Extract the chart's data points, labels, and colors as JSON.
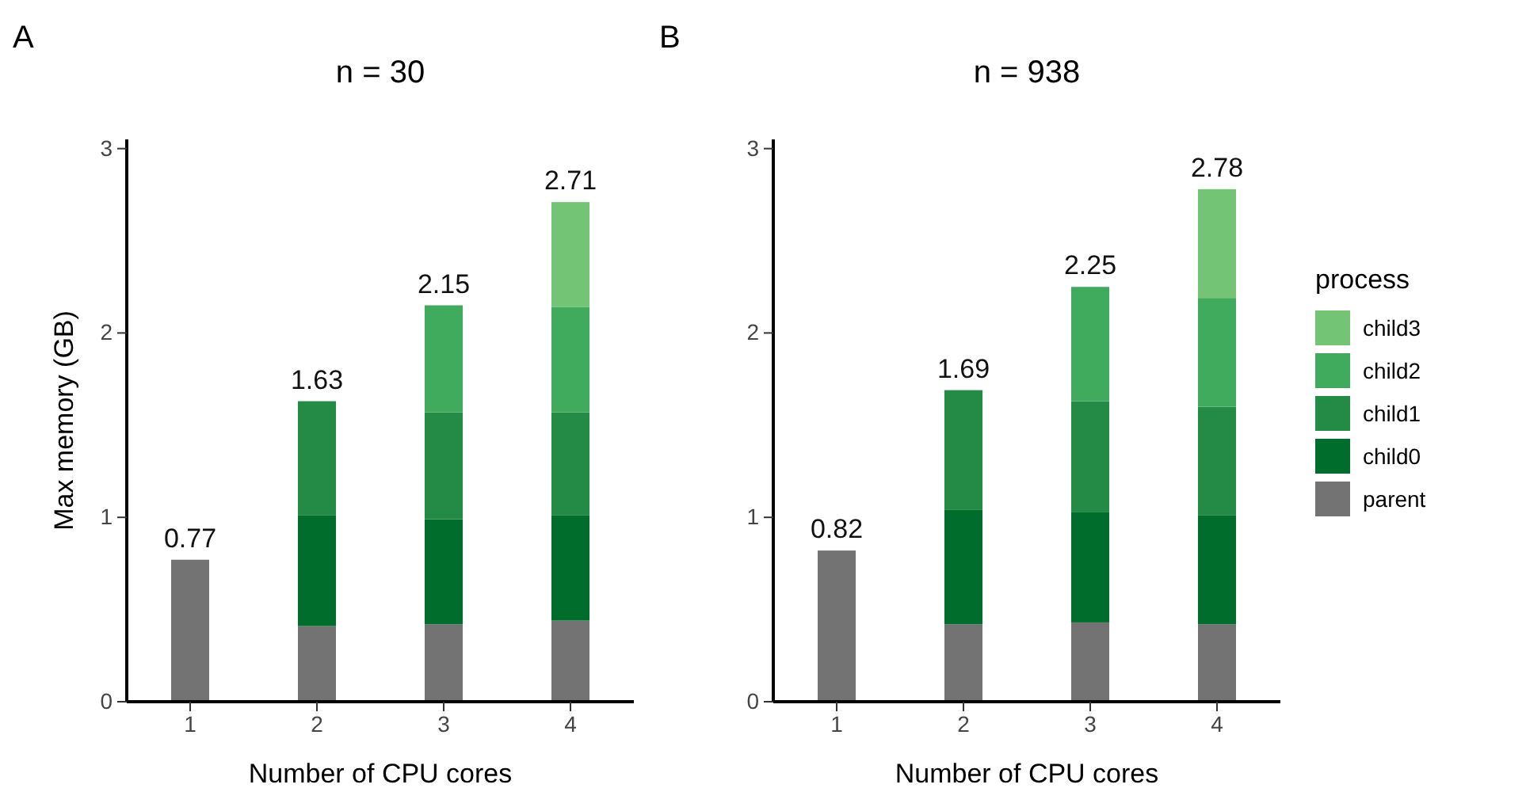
{
  "chart_data": [
    {
      "type": "bar",
      "stacked": true,
      "title": "n = 30",
      "xlabel": "Number of CPU cores",
      "ylabel": "Max memory (GB)",
      "annotations": [
        "A"
      ],
      "categories": [
        "1",
        "2",
        "3",
        "4"
      ],
      "ylim": [
        0,
        3.05
      ],
      "yticks": [
        0,
        1,
        2,
        3
      ],
      "grid": false,
      "legend": false,
      "totals": [
        "0.77",
        "1.63",
        "2.15",
        "2.71"
      ],
      "series": [
        {
          "color": "#737373",
          "values": [
            0.77,
            0.41,
            0.42,
            0.44
          ]
        },
        {
          "color": "#006d2c",
          "values": [
            null,
            0.6,
            0.57,
            0.57
          ]
        },
        {
          "color": "#238b45",
          "values": [
            null,
            0.62,
            0.58,
            0.56
          ]
        },
        {
          "color": "#41ab5d",
          "values": [
            null,
            null,
            0.58,
            0.57
          ]
        },
        {
          "color": "#74c476",
          "values": [
            null,
            null,
            null,
            0.57
          ]
        }
      ]
    },
    {
      "type": "bar",
      "stacked": true,
      "title": "n = 938",
      "xlabel": "Number of CPU cores",
      "annotations": [
        "B"
      ],
      "categories": [
        "1",
        "2",
        "3",
        "4"
      ],
      "ylim": [
        0,
        3.05
      ],
      "yticks": [
        0,
        1,
        2,
        3
      ],
      "grid": false,
      "legend": "right",
      "legend_title": "process",
      "totals": [
        "0.82",
        "1.69",
        "2.25",
        "2.78"
      ],
      "series": [
        {
          "name": "parent",
          "color": "#737373",
          "values": [
            0.82,
            0.42,
            0.43,
            0.42
          ]
        },
        {
          "name": "child0",
          "color": "#006d2c",
          "values": [
            null,
            0.62,
            0.6,
            0.59
          ]
        },
        {
          "name": "child1",
          "color": "#238b45",
          "values": [
            null,
            0.65,
            0.6,
            0.59
          ]
        },
        {
          "name": "child2",
          "color": "#41ab5d",
          "values": [
            null,
            null,
            0.62,
            0.59
          ]
        },
        {
          "name": "child3",
          "color": "#74c476",
          "values": [
            null,
            null,
            null,
            0.59
          ]
        }
      ]
    }
  ]
}
